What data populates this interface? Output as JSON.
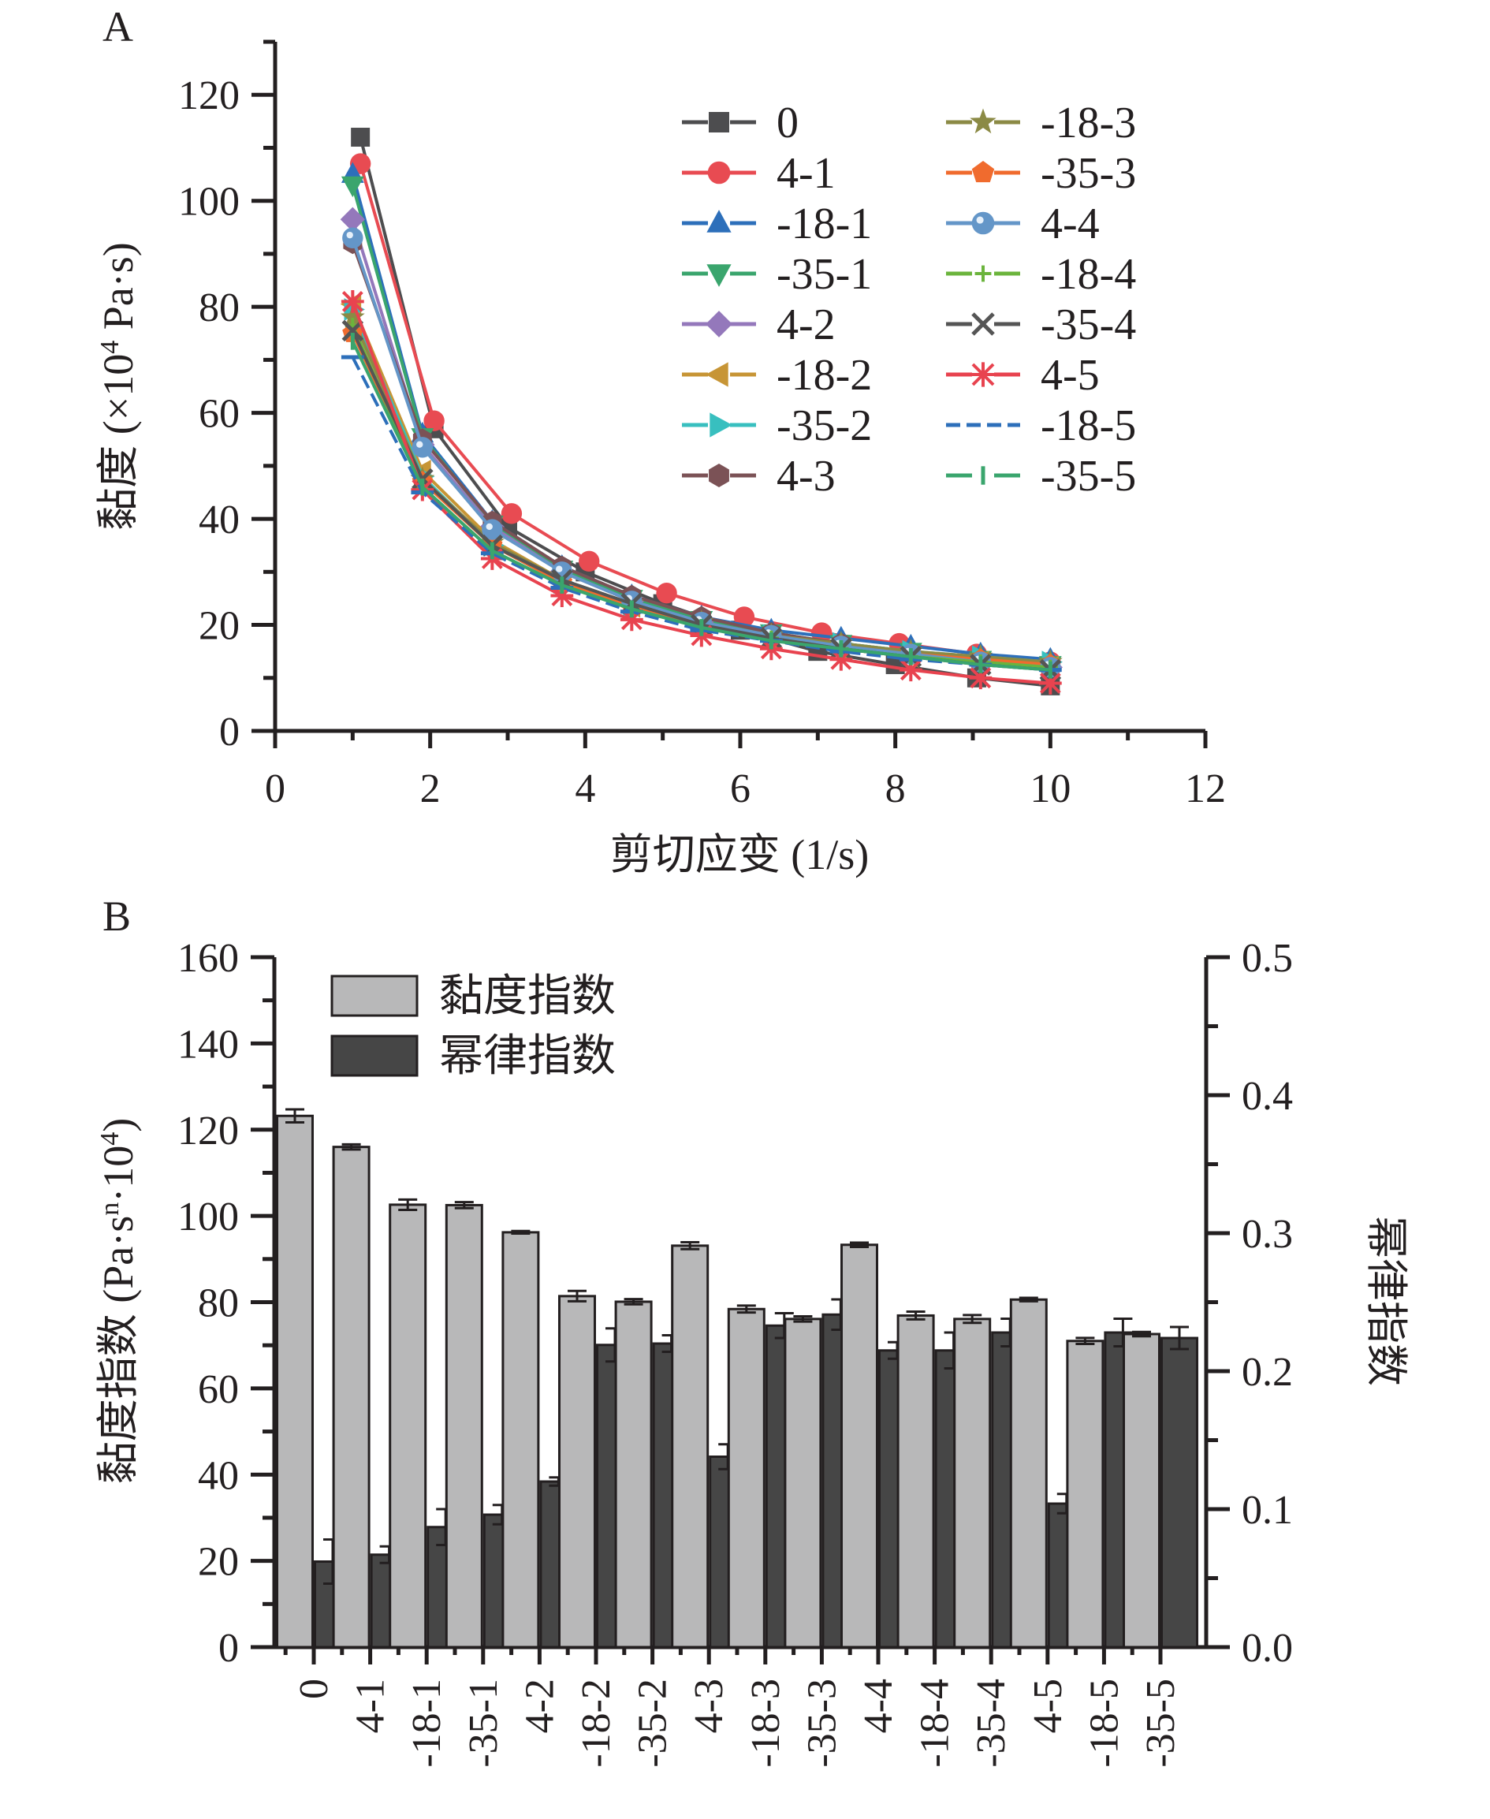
{
  "chart_data": [
    {
      "panel_label": "A",
      "type": "line",
      "title": "",
      "xlabel": "剪切应变 (1/s)",
      "ylabel": "黏度 (×10⁴ Pa·s)",
      "ylabel_parts": {
        "main": "黏度 (×10",
        "sup": "4",
        "tail": " Pa·s)"
      },
      "xlim": [
        0,
        12
      ],
      "ylim": [
        0,
        130
      ],
      "xticks": [
        0,
        2,
        4,
        6,
        8,
        10,
        12
      ],
      "yticks": [
        0,
        20,
        40,
        60,
        80,
        100,
        120
      ],
      "grid": false,
      "legend_position": "top-right",
      "legend_columns": 2,
      "series": [
        {
          "name": "0",
          "color": "#4d4d4f",
          "marker": "square",
          "x": [
            1.1,
            2.05,
            3.0,
            4.0,
            5.0,
            6.0,
            7.0,
            8.0,
            9.05,
            10.0
          ],
          "y": [
            112,
            57,
            38.5,
            30,
            24,
            19,
            15,
            12.5,
            10,
            8.5
          ]
        },
        {
          "name": "4-1",
          "color": "#e84b52",
          "marker": "circle",
          "x": [
            1.1,
            2.05,
            3.05,
            4.05,
            5.05,
            6.05,
            7.05,
            8.05,
            9.05,
            10.0
          ],
          "y": [
            107,
            58.5,
            41,
            32,
            26,
            21.5,
            18.5,
            16.5,
            14.5,
            13
          ]
        },
        {
          "name": "-18-1",
          "color": "#2d6fba",
          "marker": "triangle-up",
          "x": [
            1.0,
            1.9,
            2.8,
            3.7,
            4.6,
            5.5,
            6.4,
            7.3,
            8.2,
            9.1,
            10.0
          ],
          "y": [
            105,
            56,
            39.5,
            31,
            25.5,
            21.5,
            19,
            17.5,
            16,
            14.5,
            13.5
          ]
        },
        {
          "name": "-35-1",
          "color": "#3aa56d",
          "marker": "triangle-down",
          "x": [
            1.0,
            1.9,
            2.8,
            3.7,
            4.6,
            5.5,
            6.4,
            7.3,
            8.2,
            9.1,
            10.0
          ],
          "y": [
            103,
            55.5,
            39,
            30.5,
            25,
            21,
            18.5,
            16.5,
            15,
            13.5,
            12.5
          ]
        },
        {
          "name": "4-2",
          "color": "#9478bb",
          "marker": "diamond",
          "x": [
            1.0,
            1.9,
            2.8,
            3.7,
            4.6,
            5.5,
            6.4,
            7.3,
            8.2,
            9.1,
            10.0
          ],
          "y": [
            96.5,
            54,
            38.5,
            30,
            24.5,
            20.5,
            18,
            16,
            14.5,
            13,
            12
          ]
        },
        {
          "name": "-18-2",
          "color": "#c79536",
          "marker": "triangle-left",
          "x": [
            1.0,
            1.9,
            2.8,
            3.7,
            4.6,
            5.5,
            6.4,
            7.3,
            8.2,
            9.1,
            10.0
          ],
          "y": [
            80.5,
            49,
            36,
            28.5,
            23.5,
            20,
            17.5,
            15.5,
            14,
            13,
            12
          ]
        },
        {
          "name": "-35-2",
          "color": "#38bfbf",
          "marker": "triangle-right",
          "x": [
            1.0,
            1.9,
            2.8,
            3.7,
            4.6,
            5.5,
            6.4,
            7.3,
            8.2,
            9.1,
            10.0
          ],
          "y": [
            79.5,
            48,
            35,
            28,
            23.5,
            20,
            18,
            16.5,
            15,
            14,
            13
          ]
        },
        {
          "name": "4-3",
          "color": "#7b5256",
          "marker": "hexagon",
          "x": [
            1.0,
            1.9,
            2.8,
            3.7,
            4.6,
            5.5,
            6.4,
            7.3,
            8.2,
            9.1,
            10.0
          ],
          "y": [
            92,
            55,
            39.5,
            31,
            25.5,
            21.5,
            18.5,
            16.5,
            14.5,
            13,
            12
          ]
        },
        {
          "name": "-18-3",
          "color": "#8b8a45",
          "marker": "star",
          "x": [
            1.0,
            1.9,
            2.8,
            3.7,
            4.6,
            5.5,
            6.4,
            7.3,
            8.2,
            9.1,
            10.0
          ],
          "y": [
            78,
            47.5,
            35.5,
            28.5,
            24,
            20.5,
            18,
            16.5,
            15,
            14,
            13
          ]
        },
        {
          "name": "-35-3",
          "color": "#f06b2e",
          "marker": "pentagon",
          "x": [
            1.0,
            1.9,
            2.8,
            3.7,
            4.6,
            5.5,
            6.4,
            7.3,
            8.2,
            9.1,
            10.0
          ],
          "y": [
            75,
            47,
            35,
            28,
            23.5,
            20,
            17.5,
            16,
            14.5,
            13.5,
            12.5
          ]
        },
        {
          "name": "4-4",
          "color": "#6496c8",
          "marker": "sphere",
          "x": [
            1.0,
            1.9,
            2.8,
            3.7,
            4.6,
            5.5,
            6.4,
            7.3,
            8.2,
            9.1,
            10.0
          ],
          "y": [
            93,
            53.5,
            38,
            30,
            24.5,
            20.5,
            18,
            16,
            14.5,
            13,
            12
          ]
        },
        {
          "name": "-18-4",
          "color": "#6bb43c",
          "marker": "plus",
          "x": [
            1.0,
            1.9,
            2.8,
            3.7,
            4.6,
            5.5,
            6.4,
            7.3,
            8.2,
            9.1,
            10.0
          ],
          "y": [
            76.5,
            46,
            34,
            27.5,
            23,
            19.5,
            17.5,
            15.5,
            14,
            13,
            12
          ]
        },
        {
          "name": "-35-4",
          "color": "#555555",
          "marker": "x",
          "x": [
            1.0,
            1.9,
            2.8,
            3.7,
            4.6,
            5.5,
            6.4,
            7.3,
            8.2,
            9.1,
            10.0
          ],
          "y": [
            75.5,
            47.5,
            35,
            28.5,
            24,
            20,
            17.5,
            15.5,
            14,
            12.5,
            11.5
          ]
        },
        {
          "name": "4-5",
          "color": "#e8434f",
          "marker": "asterisk",
          "x": [
            1.0,
            1.9,
            2.8,
            3.7,
            4.6,
            5.5,
            6.4,
            7.3,
            8.2,
            9.1,
            10.0
          ],
          "y": [
            81,
            45.5,
            32.5,
            25.5,
            21,
            18,
            15.5,
            13.5,
            11.5,
            10,
            9
          ]
        },
        {
          "name": "-18-5",
          "color": "#2d6fba",
          "marker": "dash",
          "x": [
            1.0,
            1.9,
            2.8,
            3.7,
            4.6,
            5.5,
            6.4,
            7.3,
            8.2,
            9.1,
            10.0
          ],
          "y": [
            70.5,
            45,
            33.5,
            27,
            22.5,
            19,
            17,
            15,
            13.5,
            12.5,
            11.5
          ]
        },
        {
          "name": "-35-5",
          "color": "#3aa56d",
          "marker": "vbar",
          "x": [
            1.0,
            1.9,
            2.8,
            3.7,
            4.6,
            5.5,
            6.4,
            7.3,
            8.2,
            9.1,
            10.0
          ],
          "y": [
            73.5,
            46,
            34,
            27.5,
            23,
            19.5,
            17,
            15.5,
            14,
            12.5,
            11.5
          ]
        }
      ]
    },
    {
      "panel_label": "B",
      "type": "bar",
      "title": "",
      "xlabel": "",
      "ylabel": "黏度指数 (Pa·sⁿ·10⁴)",
      "ylabel_parts": {
        "main": "黏度指数 (Pa·s",
        "sup1": "n",
        "mid": "·10",
        "sup2": "4",
        "tail": ")"
      },
      "y2label": "幂律指数",
      "ylim": [
        0,
        160
      ],
      "y2lim": [
        0.0,
        0.5
      ],
      "yticks": [
        0,
        20,
        40,
        60,
        80,
        100,
        120,
        140,
        160
      ],
      "y2ticks": [
        "0.0",
        "0.1",
        "0.2",
        "0.3",
        "0.4",
        "0.5"
      ],
      "grid": false,
      "legend_position": "top-left",
      "categories": [
        "0",
        "4-1",
        "-18-1",
        "-35-1",
        "4-2",
        "-18-2",
        "-35-2",
        "4-3",
        "-18-3",
        "-35-3",
        "4-4",
        "-18-4",
        "-35-4",
        "4-5",
        "-18-5",
        "-35-5"
      ],
      "series": [
        {
          "name": "黏度指数",
          "axis": "left",
          "color": "#b8b8b9",
          "values": [
            123.2,
            116.0,
            102.6,
            102.5,
            96.2,
            81.4,
            80.1,
            93.1,
            78.4,
            76.1,
            93.3,
            76.9,
            76.1,
            80.6,
            71.0,
            72.6
          ],
          "errors": [
            1.5,
            0.6,
            1.2,
            0.7,
            0.3,
            1.2,
            0.6,
            0.8,
            0.8,
            0.6,
            0.5,
            0.9,
            0.9,
            0.4,
            0.7,
            0.5
          ]
        },
        {
          "name": "幂律指数",
          "axis": "right",
          "color": "#464646",
          "values": [
            0.062,
            0.067,
            0.087,
            0.096,
            0.12,
            0.219,
            0.22,
            0.138,
            0.233,
            0.241,
            0.215,
            0.215,
            0.228,
            0.104,
            0.228,
            0.224
          ],
          "errors": [
            0.016,
            0.006,
            0.013,
            0.007,
            0.003,
            0.012,
            0.006,
            0.009,
            0.009,
            0.011,
            0.006,
            0.013,
            0.01,
            0.007,
            0.01,
            0.008
          ]
        }
      ]
    }
  ]
}
